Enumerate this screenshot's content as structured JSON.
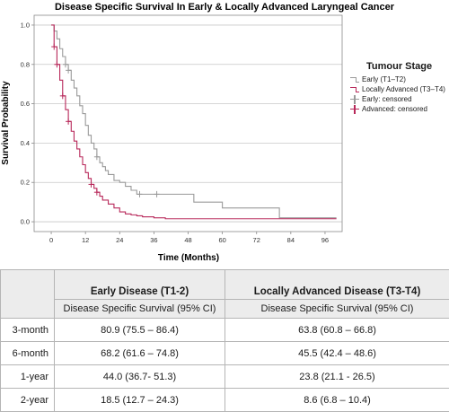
{
  "chart_data": {
    "type": "line",
    "title": "Disease Specific Survival In Early & Locally Advanced Laryngeal Cancer",
    "xlabel": "Time (Months)",
    "ylabel": "Survival Probability",
    "xlim": [
      -6,
      102
    ],
    "ylim": [
      -0.05,
      1.05
    ],
    "xticks": [
      0,
      12,
      24,
      36,
      48,
      60,
      72,
      84,
      96
    ],
    "yticks": [
      0.0,
      0.2,
      0.4,
      0.6,
      0.8,
      1.0
    ],
    "ytick_labels": [
      "0.0",
      "0.2",
      "0.4",
      "0.6",
      "0.8",
      "1.0"
    ],
    "grid": "horizontal",
    "legend": {
      "title": "Tumour Stage",
      "position": "right",
      "entries": [
        "Early (T1–T2)",
        "Locally Advanced (T3–T4)",
        "Early: censored",
        "Advanced: censored"
      ]
    },
    "series": [
      {
        "name": "Early (T1–T2)",
        "color": "#9a9a9a",
        "x": [
          0,
          1,
          2,
          3,
          4,
          5,
          6,
          7,
          8,
          9,
          10,
          11,
          12,
          13,
          14,
          15,
          16,
          17,
          18,
          19,
          20,
          22,
          24,
          26,
          28,
          30,
          36,
          40,
          50,
          60,
          80,
          100
        ],
        "y": [
          1.0,
          0.97,
          0.93,
          0.88,
          0.84,
          0.8,
          0.77,
          0.72,
          0.68,
          0.64,
          0.59,
          0.55,
          0.49,
          0.44,
          0.4,
          0.37,
          0.33,
          0.3,
          0.28,
          0.26,
          0.24,
          0.21,
          0.2,
          0.18,
          0.16,
          0.14,
          0.14,
          0.14,
          0.1,
          0.07,
          0.02,
          0.02
        ],
        "censored_x": [
          5,
          6,
          16,
          31,
          37
        ]
      },
      {
        "name": "Locally Advanced (T3–T4)",
        "color": "#b8285a",
        "x": [
          0,
          1,
          2,
          3,
          4,
          5,
          6,
          7,
          8,
          9,
          10,
          11,
          12,
          13,
          14,
          15,
          16,
          17,
          18,
          20,
          22,
          24,
          26,
          28,
          30,
          32,
          36,
          40,
          100
        ],
        "y": [
          1.0,
          0.89,
          0.8,
          0.72,
          0.64,
          0.57,
          0.51,
          0.46,
          0.41,
          0.37,
          0.33,
          0.29,
          0.25,
          0.22,
          0.19,
          0.17,
          0.15,
          0.13,
          0.11,
          0.09,
          0.07,
          0.05,
          0.04,
          0.035,
          0.03,
          0.025,
          0.02,
          0.015,
          0.015
        ],
        "censored_x": [
          1,
          2,
          4,
          6,
          14,
          16
        ]
      }
    ]
  },
  "table": {
    "headers": {
      "early": "Early Disease (T1-2)",
      "advanced": "Locally Advanced Disease (T3-T4)",
      "sub_early": "Disease Specific Survival (95% CI)",
      "sub_advanced": "Disease Specific Survival (95% CI)"
    },
    "rows": [
      {
        "label": "3-month",
        "early": "80.9 (75.5 – 86.4)",
        "advanced": "63.8 (60.8 – 66.8)"
      },
      {
        "label": "6-month",
        "early": "68.2 (61.6 – 74.8)",
        "advanced": "45.5 (42.4 – 48.6)"
      },
      {
        "label": "1-year",
        "early": "44.0 (36.7- 51.3)",
        "advanced": "23.8 (21.1 - 26.5)"
      },
      {
        "label": "2-year",
        "early": "18.5 (12.7 – 24.3)",
        "advanced": "8.6 (6.8 – 10.4)"
      }
    ]
  }
}
